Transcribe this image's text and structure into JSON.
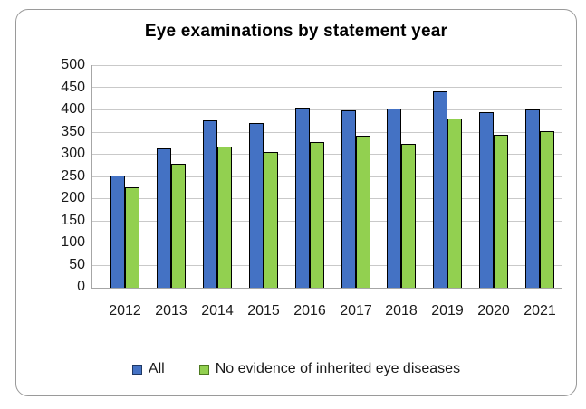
{
  "frame": {
    "border_color": "#9a9a9a",
    "background": "#ffffff"
  },
  "chart_data": {
    "type": "bar",
    "title": "Eye examinations by statement year",
    "categories": [
      "2012",
      "2013",
      "2014",
      "2015",
      "2016",
      "2017",
      "2018",
      "2019",
      "2020",
      "2021"
    ],
    "series": [
      {
        "name": "All",
        "color": "#4472C4",
        "swatch_border": "#1F3864",
        "values": [
          254,
          315,
          377,
          372,
          407,
          401,
          404,
          442,
          396,
          403
        ]
      },
      {
        "name": "No evidence of inherited eye diseases",
        "color": "#92D050",
        "swatch_border": "#4E7A21",
        "values": [
          227,
          279,
          318,
          306,
          329,
          343,
          324,
          381,
          345,
          353
        ]
      }
    ],
    "xlabel": "",
    "ylabel": "",
    "ylim": [
      0,
      500
    ],
    "yticks": [
      500,
      450,
      400,
      350,
      300,
      250,
      200,
      150,
      100,
      50,
      0
    ],
    "grid": "horizontal",
    "gridline_color": "#c9c9c9",
    "axis_line_color": "#a6a6a6",
    "bar_border_color": "#000000",
    "legend_position": "bottom"
  }
}
